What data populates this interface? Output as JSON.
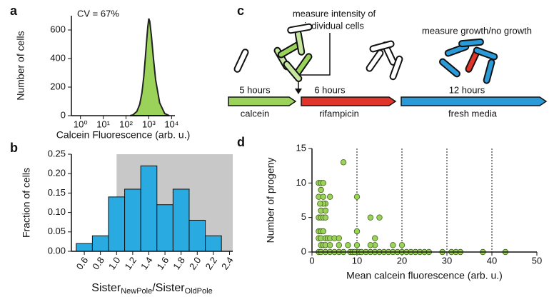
{
  "panel_labels": [
    "a",
    "b",
    "c",
    "d"
  ],
  "chart_data": [
    {
      "type": "area",
      "xlabel": "Calcein Fluorescence (arb. u.)",
      "ylabel": "Number of cells",
      "annotation": "CV = 67%",
      "xscale": "log",
      "xlim": [
        0.4,
        14000
      ],
      "ylim": [
        0,
        700
      ],
      "xticks": [
        {
          "value": 1,
          "label": "10⁰"
        },
        {
          "value": 10,
          "label": "10¹"
        },
        {
          "value": 100,
          "label": "10²"
        },
        {
          "value": 1000,
          "label": "10³"
        },
        {
          "value": 10000,
          "label": "10⁴"
        }
      ],
      "yticks": [
        0,
        200,
        400,
        600
      ],
      "color": "#9bd35a",
      "x": [
        150,
        200,
        300,
        400,
        500,
        600,
        700,
        800,
        900,
        1000,
        1100,
        1300,
        1600,
        2000,
        3000,
        5000,
        8000
      ],
      "values": [
        0,
        5,
        30,
        80,
        160,
        270,
        400,
        520,
        620,
        680,
        660,
        560,
        400,
        250,
        90,
        15,
        0
      ]
    },
    {
      "type": "histogram",
      "ylabel": "Fraction of cells",
      "xlabel_parts": [
        "Sister",
        "NewPole",
        "/Sister",
        "OldPole"
      ],
      "xlim": [
        0.44,
        2.44
      ],
      "ylim": [
        0,
        0.25
      ],
      "shade_from": 1.0,
      "color": "#29aae1",
      "xticks": [
        0.6,
        0.8,
        {
          "value": 1,
          "label": "1.0"
        },
        1.2,
        1.4,
        1.6,
        1.8,
        {
          "value": 2,
          "label": "2.0"
        },
        2.2,
        2.4
      ],
      "yticks": [
        {
          "value": 0,
          "label": "0.00"
        },
        0.05,
        {
          "value": 0.1,
          "label": "0.10"
        },
        0.15,
        {
          "value": 0.2,
          "label": "0.20"
        },
        0.25
      ],
      "bins": [
        0.5,
        0.7,
        0.9,
        1.1,
        1.3,
        1.5,
        1.7,
        1.9,
        2.1,
        2.3
      ],
      "values": [
        0.02,
        0.04,
        0.14,
        0.16,
        0.22,
        0.12,
        0.16,
        0.08,
        0.04
      ]
    },
    {
      "type": "scatter",
      "xlabel": "Mean calcein fluorescence (arb. u.)",
      "ylabel": "Number of progeny",
      "xlim": [
        0,
        50
      ],
      "ylim": [
        0,
        15
      ],
      "xticks": [
        0,
        10,
        20,
        30,
        40,
        50
      ],
      "yticks": [
        0,
        5,
        10,
        15
      ],
      "grid": true,
      "color": "#9bd35a",
      "x": [
        1.5,
        2,
        2.5,
        2,
        1.5,
        2.5,
        3,
        2.5,
        1.8,
        2,
        3,
        7,
        4,
        1.5,
        2,
        2.5,
        3,
        1.5,
        2,
        2.5,
        1.5,
        2,
        3,
        3.5,
        4,
        5,
        6,
        2,
        2.5,
        3,
        4,
        6,
        1.5,
        2,
        3,
        4,
        5,
        6,
        7,
        8,
        8.5,
        9,
        9.5,
        10,
        10,
        10,
        10.5,
        11,
        13,
        15,
        14,
        14,
        13,
        12,
        13,
        14,
        15,
        16,
        17,
        18,
        18,
        19,
        20,
        20,
        21,
        22,
        23,
        24,
        25,
        26,
        29,
        31,
        32,
        33,
        38,
        43
      ],
      "values": [
        10,
        10,
        10,
        9,
        8,
        8,
        7,
        7,
        7,
        6,
        6,
        13,
        8,
        5,
        5,
        5,
        5,
        3,
        3,
        3,
        2,
        2,
        2,
        2,
        2,
        2,
        2,
        1,
        1,
        1,
        1,
        1,
        0,
        0,
        0,
        0,
        0,
        0,
        0,
        1,
        0,
        0,
        0,
        8,
        3,
        1,
        0,
        0,
        5,
        5,
        2,
        1,
        1,
        0,
        0,
        0,
        0,
        0,
        0,
        0,
        1,
        0,
        1,
        0,
        0,
        0,
        0,
        0,
        0,
        0,
        0,
        0,
        0,
        0,
        0,
        0
      ]
    }
  ],
  "diagram": {
    "measure_intensity": [
      "measure intensity of",
      "individual cells"
    ],
    "measure_growth": "measure  growth/no growth",
    "durations": [
      "5 hours",
      "6 hours",
      "12 hours"
    ],
    "media": [
      "calcein",
      "rifampicin",
      "fresh media"
    ]
  }
}
